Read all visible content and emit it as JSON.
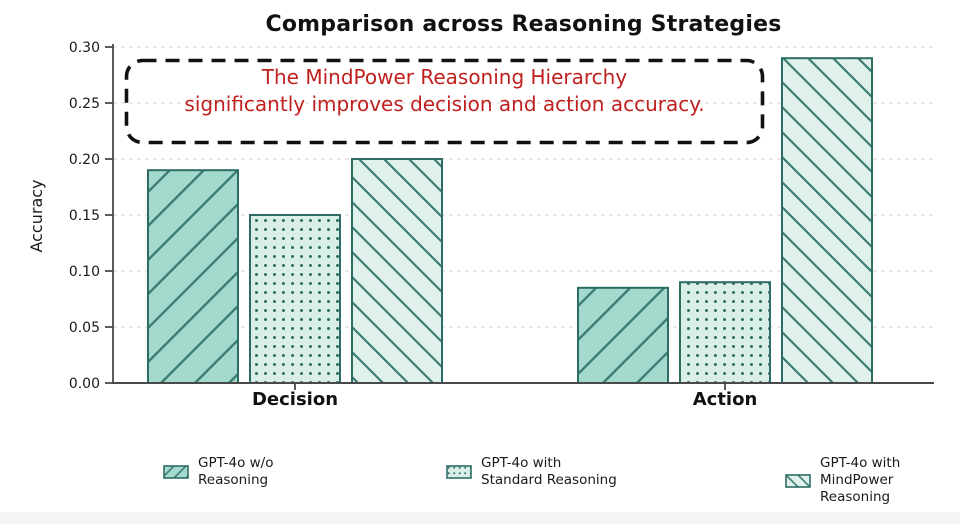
{
  "page": {
    "background": "#ffffff"
  },
  "chart_data": {
    "type": "bar",
    "title": "Comparison across Reasoning Strategies",
    "ylabel": "Accuracy",
    "xlabel": "",
    "categories": [
      "Decision",
      "Action"
    ],
    "series": [
      {
        "name": "GPT-4o w/o Reasoning",
        "values": [
          0.19,
          0.085
        ],
        "fill": "#a3dacd",
        "hatch": "/"
      },
      {
        "name": "GPT-4o with Standard Reasoning",
        "values": [
          0.15,
          0.09
        ],
        "fill": "#d8eee7",
        "hatch": "dots"
      },
      {
        "name": "GPT-4o with MindPower Reasoning",
        "values": [
          0.2,
          0.29
        ],
        "fill": "#dff1ea",
        "hatch": "\\"
      }
    ],
    "ylim": [
      0,
      0.3
    ],
    "yticks": [
      "0.00",
      "0.05",
      "0.10",
      "0.15",
      "0.20",
      "0.25",
      "0.30"
    ],
    "grid": "horizontal-dashed",
    "legend_position": "bottom",
    "hatch_color": "#3c7d74",
    "dot_color": "#2f6e66",
    "bar_edge_color": "#2e6d66",
    "grid_color": "#dcdcdc",
    "axis_color": "#4a4a4a"
  },
  "annotation": {
    "line1": "The MindPower Reasoning Hierarchy",
    "line2": "significantly improves decision and action accuracy.",
    "text_color": "#c0211f",
    "border_color": "#111111"
  },
  "legend": {
    "items": [
      {
        "line1": "GPT-4o w/o",
        "line2": "Reasoning"
      },
      {
        "line1": "GPT-4o with",
        "line2": "Standard Reasoning"
      },
      {
        "line1": "GPT-4o with",
        "line2": "MindPower Reasoning"
      }
    ]
  }
}
